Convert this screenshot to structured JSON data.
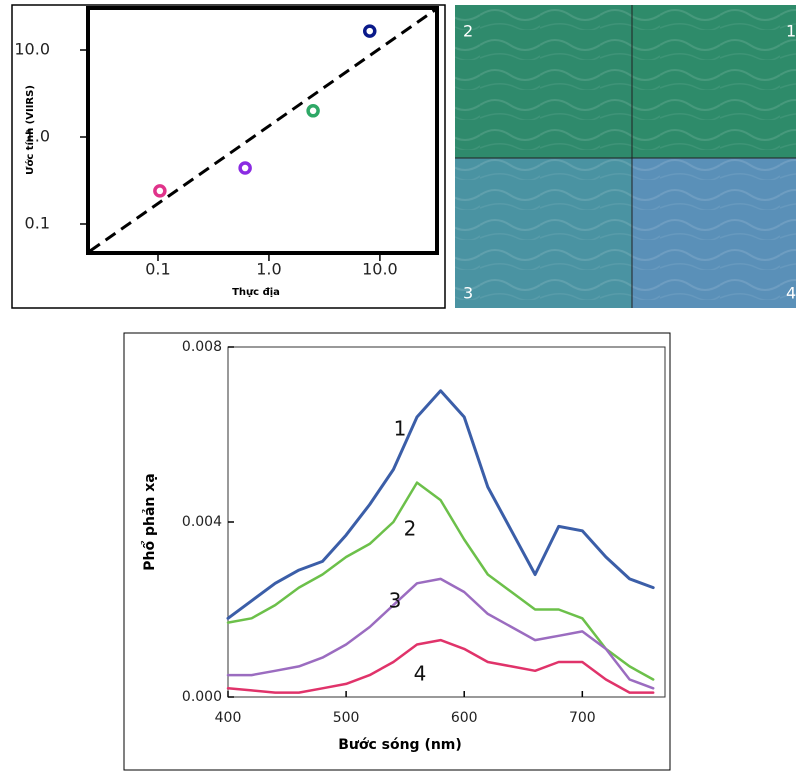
{
  "chart_data": [
    {
      "type": "scatter",
      "xlabel": "Thực địa",
      "ylabel": "Ước tính (VIIRS)",
      "x": [
        0.104,
        0.61,
        2.5,
        8.1
      ],
      "values": [
        0.24,
        0.44,
        2.0,
        16.5
      ],
      "colors": [
        "#e0338a",
        "#8a2be2",
        "#2ea866",
        "#0a1a8a"
      ],
      "xscale": "log",
      "yscale": "log",
      "xlim": [
        0.0234,
        32.7
      ],
      "ylim": [
        0.0464,
        30.4
      ],
      "xticks": [
        0.1,
        {
          "value": 1,
          "label": "1.0"
        },
        {
          "value": 10,
          "label": "10.0"
        }
      ],
      "yticks": [
        0.1,
        {
          "value": 1,
          "label": "1.0"
        },
        {
          "value": 10,
          "label": "10.0"
        }
      ]
    },
    {
      "type": "line",
      "xlabel": "Bước sóng (nm)",
      "ylabel": "Phổ phản xạ",
      "x": [
        400,
        420,
        440,
        460,
        480,
        500,
        520,
        540,
        560,
        580,
        600,
        620,
        640,
        660,
        680,
        700,
        720,
        740,
        760
      ],
      "series": [
        {
          "name": "1",
          "color": "#3b5ea8",
          "values": [
            0.0018,
            0.0022,
            0.0026,
            0.0029,
            0.0031,
            0.0037,
            0.0044,
            0.0052,
            0.0064,
            0.007,
            0.0064,
            0.0048,
            0.0038,
            0.0028,
            0.0039,
            0.0038,
            0.0032,
            0.0027,
            0.0025
          ]
        },
        {
          "name": "2",
          "color": "#6cc04a",
          "values": [
            0.0017,
            0.0018,
            0.0021,
            0.0025,
            0.0028,
            0.0032,
            0.0035,
            0.004,
            0.0049,
            0.0045,
            0.0036,
            0.0028,
            0.0024,
            0.002,
            0.002,
            0.0018,
            0.0011,
            0.0007,
            0.0004
          ]
        },
        {
          "name": "3",
          "color": "#9b6cc0",
          "values": [
            0.0005,
            0.0005,
            0.0006,
            0.0007,
            0.0009,
            0.0012,
            0.0016,
            0.0021,
            0.0026,
            0.0027,
            0.0024,
            0.0019,
            0.0016,
            0.0013,
            0.0014,
            0.0015,
            0.0011,
            0.0004,
            0.0002
          ]
        },
        {
          "name": "4",
          "color": "#e0336a",
          "values": [
            0.0002,
            0.00015,
            0.0001,
            0.0001,
            0.0002,
            0.0003,
            0.0005,
            0.0008,
            0.0012,
            0.0013,
            0.0011,
            0.0008,
            0.0007,
            0.0006,
            0.0008,
            0.0008,
            0.0004,
            0.0001,
            0.0001
          ]
        }
      ],
      "xlim": [
        400,
        770
      ],
      "ylim": [
        0,
        0.008
      ],
      "xticks": [
        400,
        500,
        600,
        700
      ],
      "yticks": [
        {
          "value": 0,
          "label": "0.000"
        },
        {
          "value": 0.004,
          "label": "0.004"
        },
        0.008
      ]
    }
  ],
  "photo_panel": {
    "labels": [
      "2",
      "1",
      "3",
      "4"
    ]
  }
}
